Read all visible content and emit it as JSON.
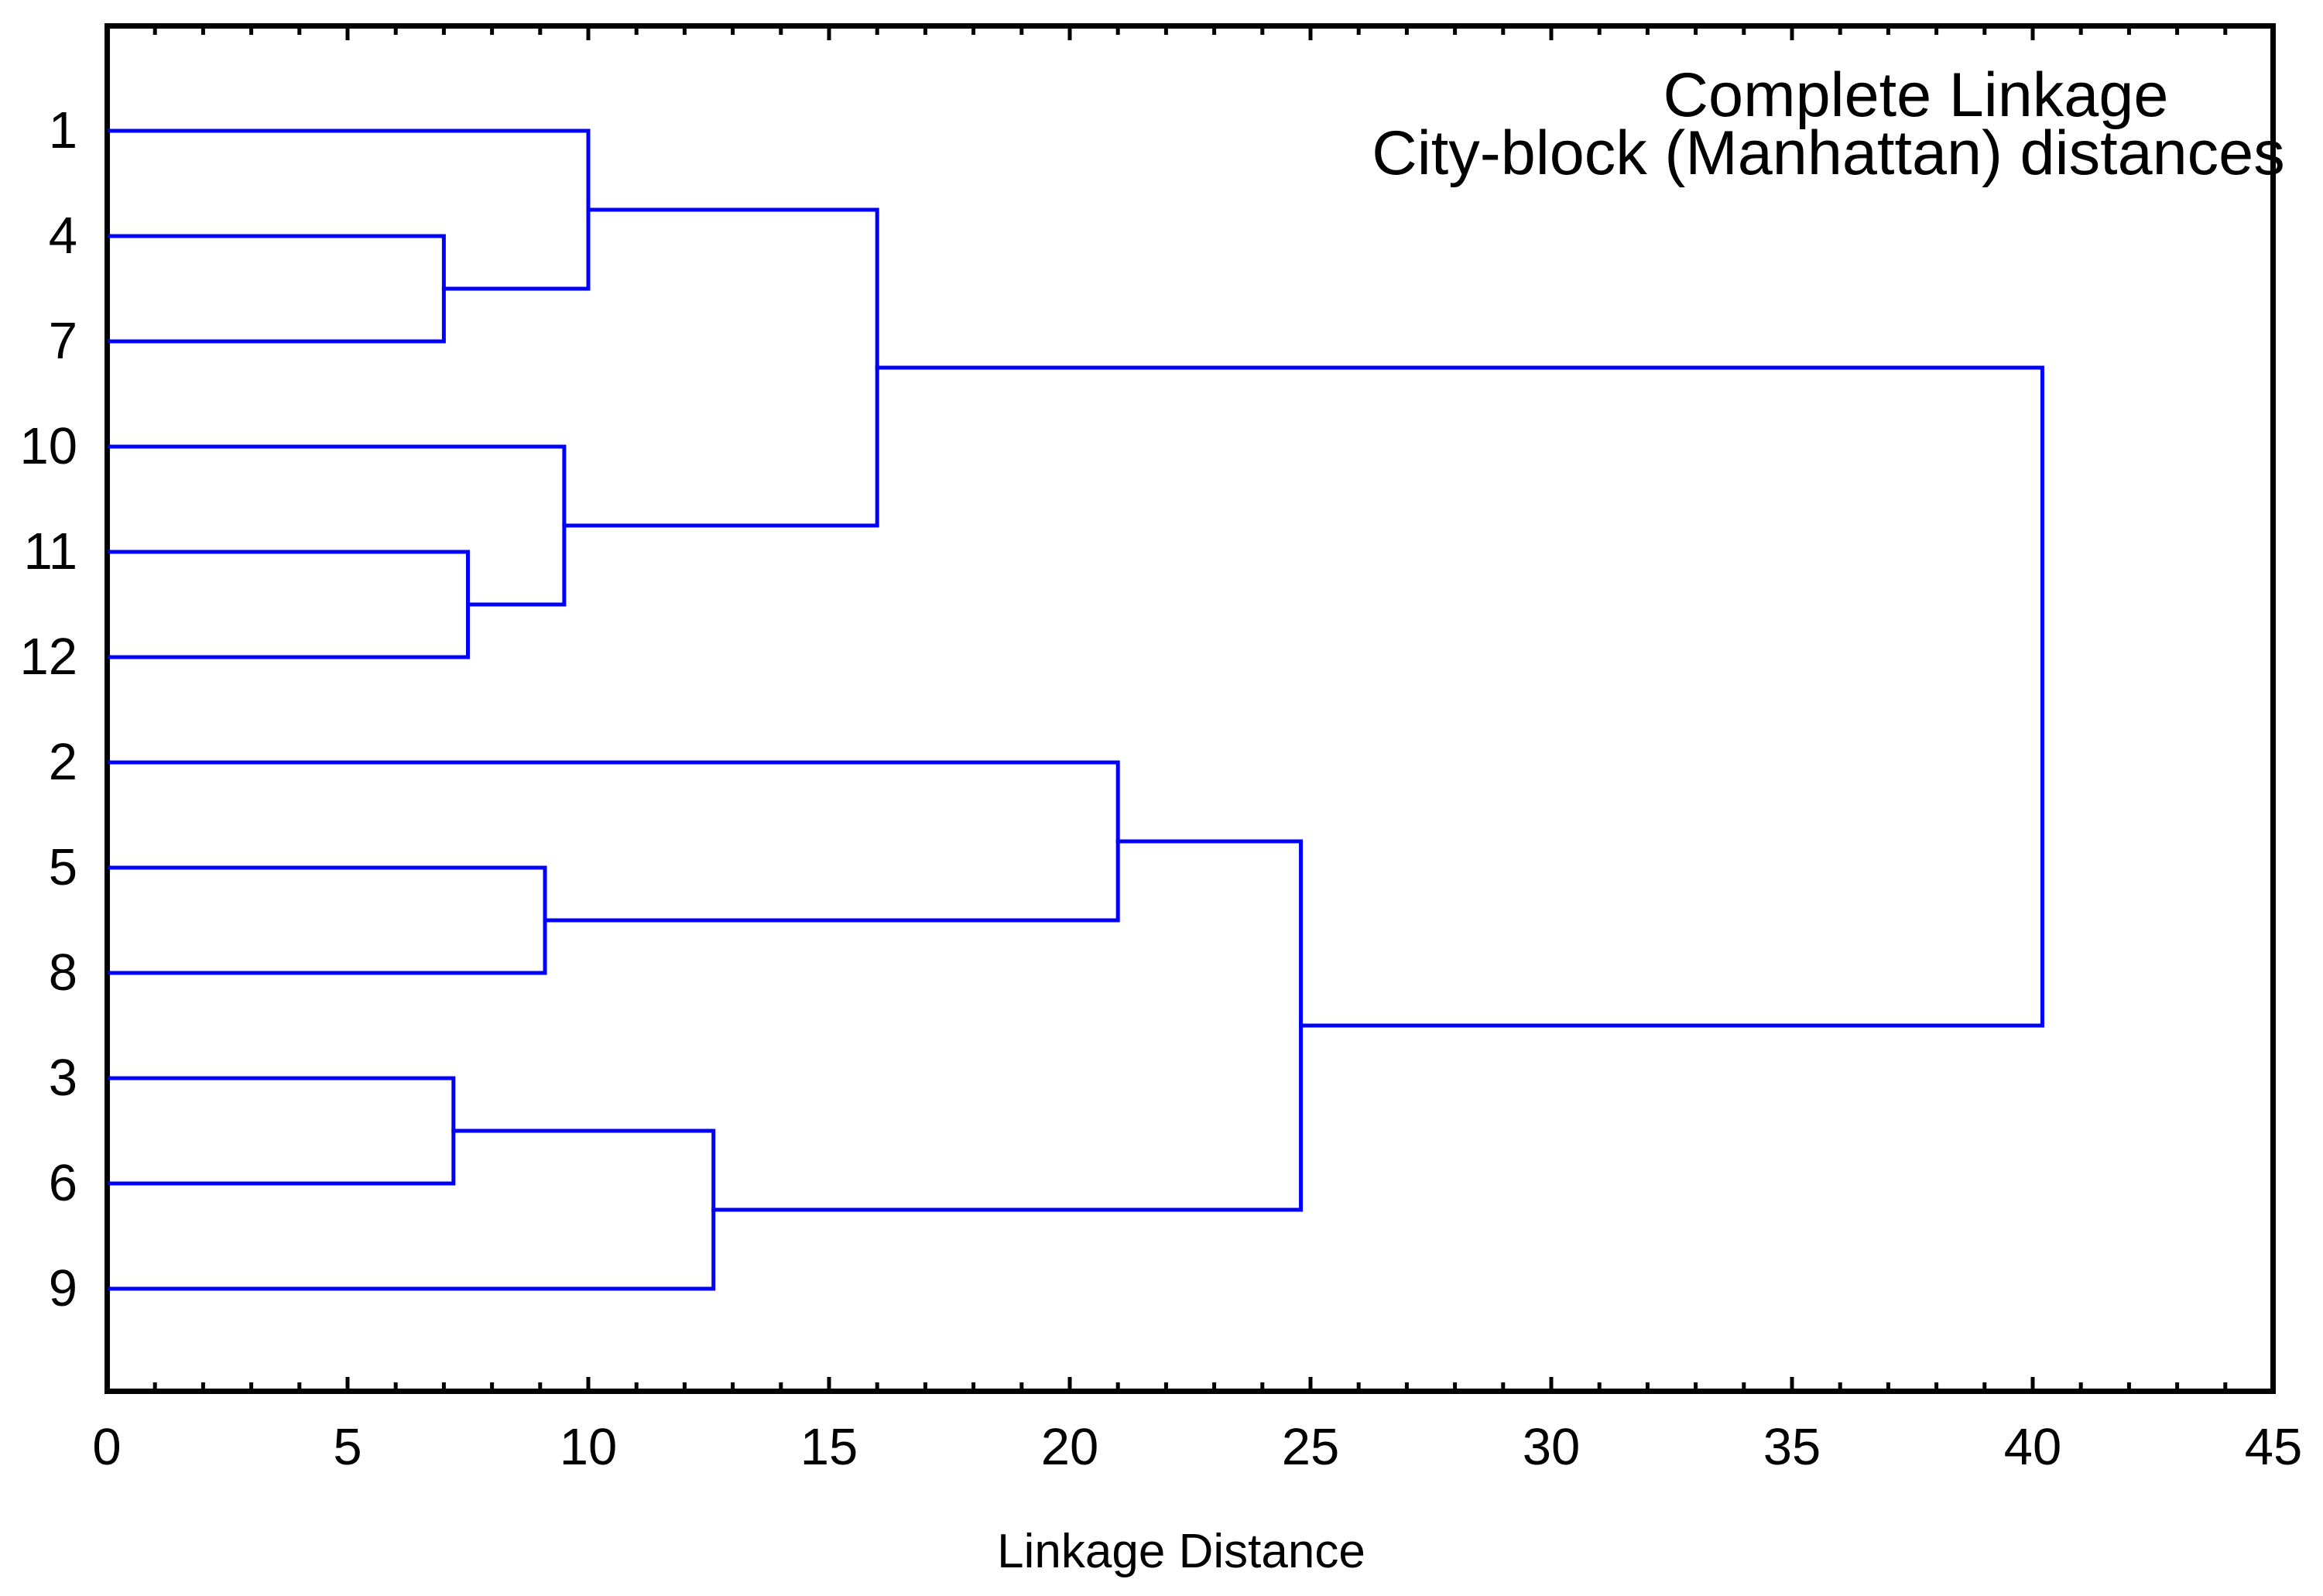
{
  "title": {
    "line1": "Complete Linkage",
    "line2": "City-block (Manhattan) distances"
  },
  "axis": {
    "label": "Linkage Distance",
    "min": 0,
    "max": 45,
    "major_step": 5,
    "minor_step": 1,
    "tick_labels": [
      "0",
      "5",
      "10",
      "15",
      "20",
      "25",
      "30",
      "35",
      "40",
      "45"
    ]
  },
  "leaves": [
    "1",
    "4",
    "7",
    "10",
    "11",
    "12",
    "2",
    "5",
    "8",
    "3",
    "6",
    "9"
  ],
  "colors": {
    "link": "#0000FF",
    "axis": "#000000",
    "text": "#000000",
    "background": "#FFFFFF"
  },
  "chart_data": {
    "type": "dendrogram",
    "orientation": "horizontal-root-right",
    "title": "Complete Linkage",
    "subtitle": "City-block (Manhattan) distances",
    "xlabel": "Linkage Distance",
    "xlim": [
      0,
      45
    ],
    "x_major_ticks": [
      0,
      5,
      10,
      15,
      20,
      25,
      30,
      35,
      40,
      45
    ],
    "x_minor_tick_step": 1,
    "leaf_order_top_to_bottom": [
      "1",
      "4",
      "7",
      "10",
      "11",
      "12",
      "2",
      "5",
      "8",
      "3",
      "6",
      "9"
    ],
    "merges": [
      {
        "id": "m1",
        "children": [
          "4",
          "7"
        ],
        "distance": 7.0
      },
      {
        "id": "m2",
        "children": [
          "1",
          "m1"
        ],
        "distance": 10.0
      },
      {
        "id": "m3",
        "children": [
          "11",
          "12"
        ],
        "distance": 7.5
      },
      {
        "id": "m4",
        "children": [
          "10",
          "m3"
        ],
        "distance": 9.5
      },
      {
        "id": "m5",
        "children": [
          "m2",
          "m4"
        ],
        "distance": 16.0
      },
      {
        "id": "m6",
        "children": [
          "5",
          "8"
        ],
        "distance": 9.1
      },
      {
        "id": "m7",
        "children": [
          "2",
          "m6"
        ],
        "distance": 21.0
      },
      {
        "id": "m8",
        "children": [
          "3",
          "6"
        ],
        "distance": 7.2
      },
      {
        "id": "m9",
        "children": [
          "m8",
          "9"
        ],
        "distance": 12.6
      },
      {
        "id": "m10",
        "children": [
          "m7",
          "m9"
        ],
        "distance": 24.8
      },
      {
        "id": "root",
        "children": [
          "m5",
          "m10"
        ],
        "distance": 40.2
      }
    ]
  }
}
